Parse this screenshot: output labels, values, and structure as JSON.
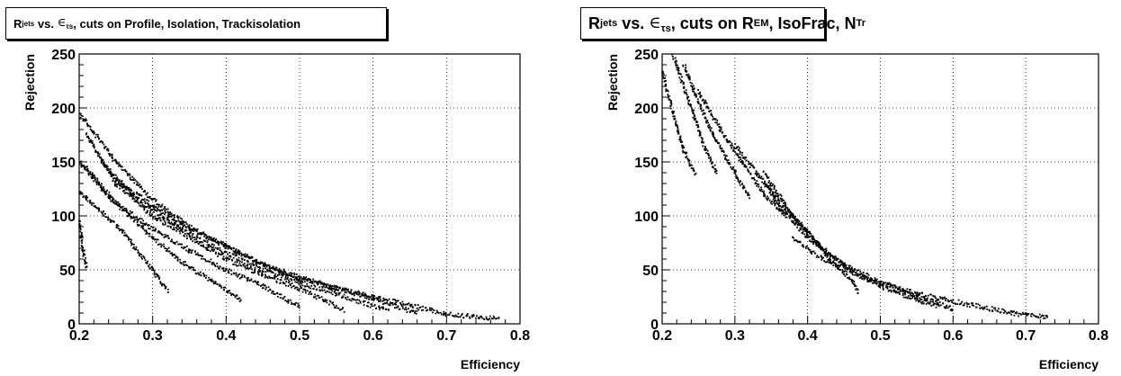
{
  "chart_data": [
    {
      "type": "scatter",
      "title": "R_jets vs. ∈_τs, cuts on Profile, Isolation, Trackisolation",
      "title_parts": {
        "r": "R",
        "r_sub": "jets",
        "vs": " vs. ",
        "eps": "∈",
        "eps_sub": "τs",
        "rest": ", cuts on Profile, Isolation, Trackisolation"
      },
      "xlabel": "Efficiency",
      "ylabel": "Rejection",
      "xlim": [
        0.2,
        0.8
      ],
      "ylim": [
        0,
        250
      ],
      "xticks": [
        "0.2",
        "0.3",
        "0.4",
        "0.5",
        "0.6",
        "0.7",
        "0.8"
      ],
      "yticks": [
        "0",
        "50",
        "100",
        "150",
        "200",
        "250"
      ],
      "grid": true,
      "legend": "none",
      "series": [
        {
          "values": [
            [
              0.2,
              95
            ],
            [
              0.205,
              70
            ],
            [
              0.21,
              52
            ]
          ]
        },
        {
          "values": [
            [
              0.2,
              122
            ],
            [
              0.21,
              117
            ],
            [
              0.26,
              85
            ],
            [
              0.3,
              50
            ],
            [
              0.32,
              30
            ]
          ]
        },
        {
          "values": [
            [
              0.2,
              150
            ],
            [
              0.24,
              118
            ],
            [
              0.3,
              80
            ],
            [
              0.35,
              52
            ],
            [
              0.38,
              40
            ],
            [
              0.42,
              22
            ]
          ]
        },
        {
          "values": [
            [
              0.2,
              152
            ],
            [
              0.25,
              112
            ],
            [
              0.3,
              88
            ],
            [
              0.35,
              68
            ],
            [
              0.4,
              50
            ],
            [
              0.45,
              35
            ],
            [
              0.5,
              16
            ]
          ]
        },
        {
          "values": [
            [
              0.21,
              175
            ],
            [
              0.25,
              130
            ],
            [
              0.3,
              100
            ],
            [
              0.35,
              80
            ],
            [
              0.4,
              60
            ],
            [
              0.45,
              45
            ],
            [
              0.5,
              33
            ],
            [
              0.56,
              13
            ]
          ]
        },
        {
          "values": [
            [
              0.23,
              150
            ],
            [
              0.28,
              115
            ],
            [
              0.33,
              92
            ],
            [
              0.38,
              72
            ],
            [
              0.45,
              50
            ],
            [
              0.5,
              38
            ],
            [
              0.55,
              28
            ],
            [
              0.62,
              12
            ]
          ]
        },
        {
          "values": [
            [
              0.25,
              132
            ],
            [
              0.3,
              110
            ],
            [
              0.35,
              88
            ],
            [
              0.4,
              72
            ],
            [
              0.45,
              55
            ],
            [
              0.5,
              43
            ],
            [
              0.55,
              33
            ],
            [
              0.6,
              23
            ],
            [
              0.66,
              10
            ]
          ]
        },
        {
          "values": [
            [
              0.2,
              195
            ],
            [
              0.25,
              150
            ],
            [
              0.3,
              115
            ],
            [
              0.35,
              90
            ],
            [
              0.4,
              72
            ],
            [
              0.45,
              55
            ],
            [
              0.5,
              42
            ],
            [
              0.55,
              33
            ],
            [
              0.6,
              25
            ],
            [
              0.65,
              17
            ],
            [
              0.7,
              9
            ],
            [
              0.77,
              5
            ]
          ]
        }
      ]
    },
    {
      "type": "scatter",
      "title": "R_jets vs. ∈_τs, cuts on R_EM, IsoFrac, N_Tr",
      "title_parts": {
        "r": "R",
        "r_sub": "jets",
        "vs": " vs. ",
        "eps": "∈",
        "eps_sub": "τs",
        "mid1": ", cuts on R",
        "em_sub": "EM",
        "mid2": ", IsoFrac, N",
        "tr_sub": "Tr"
      },
      "xlabel": "Efficiency",
      "ylabel": "Rejection",
      "xlim": [
        0.2,
        0.8
      ],
      "ylim": [
        0,
        250
      ],
      "xticks": [
        "0.2",
        "0.3",
        "0.4",
        "0.5",
        "0.6",
        "0.7",
        "0.8"
      ],
      "yticks": [
        "0",
        "50",
        "100",
        "150",
        "200",
        "250"
      ],
      "grid": true,
      "legend": "none",
      "series": [
        {
          "values": [
            [
              0.2,
              235
            ],
            [
              0.215,
              195
            ],
            [
              0.23,
              160
            ],
            [
              0.245,
              140
            ]
          ]
        },
        {
          "values": [
            [
              0.215,
              248
            ],
            [
              0.235,
              210
            ],
            [
              0.255,
              170
            ],
            [
              0.275,
              140
            ]
          ]
        },
        {
          "values": [
            [
              0.23,
              240
            ],
            [
              0.25,
              205
            ],
            [
              0.27,
              175
            ],
            [
              0.3,
              140
            ],
            [
              0.32,
              118
            ]
          ]
        },
        {
          "values": [
            [
              0.25,
              215
            ],
            [
              0.28,
              180
            ],
            [
              0.31,
              150
            ],
            [
              0.34,
              120
            ],
            [
              0.37,
              100
            ]
          ]
        },
        {
          "values": [
            [
              0.3,
              165
            ],
            [
              0.33,
              140
            ],
            [
              0.36,
              115
            ],
            [
              0.4,
              85
            ],
            [
              0.43,
              60
            ],
            [
              0.46,
              40
            ],
            [
              0.47,
              30
            ]
          ]
        },
        {
          "values": [
            [
              0.34,
              140
            ],
            [
              0.38,
              100
            ],
            [
              0.42,
              70
            ],
            [
              0.46,
              50
            ],
            [
              0.5,
              35
            ],
            [
              0.55,
              22
            ],
            [
              0.58,
              16
            ]
          ]
        },
        {
          "values": [
            [
              0.34,
              130
            ],
            [
              0.36,
              110
            ],
            [
              0.4,
              80
            ],
            [
              0.45,
              55
            ],
            [
              0.5,
              38
            ],
            [
              0.55,
              26
            ],
            [
              0.6,
              14
            ]
          ]
        },
        {
          "values": [
            [
              0.38,
              80
            ],
            [
              0.42,
              60
            ],
            [
              0.48,
              42
            ],
            [
              0.55,
              28
            ],
            [
              0.62,
              18
            ],
            [
              0.68,
              10
            ],
            [
              0.73,
              6
            ]
          ]
        }
      ]
    }
  ]
}
